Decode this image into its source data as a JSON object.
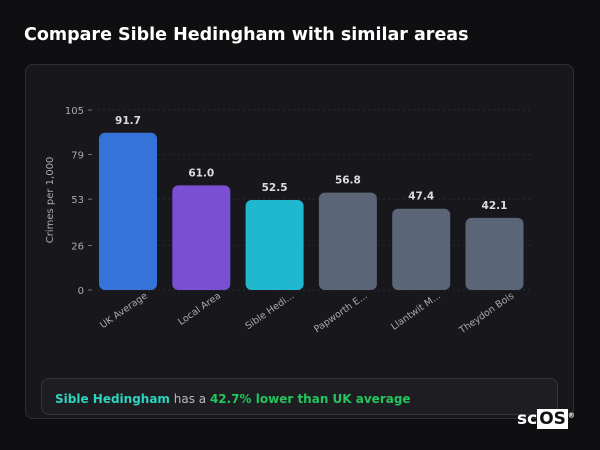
{
  "title": "Compare Sible Hedingham with similar areas",
  "summary": {
    "area": "Sible Hedingham",
    "middle": " has a ",
    "highlight": "42.7% lower than UK average"
  },
  "logo": {
    "prefix": "sc",
    "box": "OS",
    "mark": "®"
  },
  "chart_data": {
    "type": "bar",
    "title": "",
    "xlabel": "",
    "ylabel": "Crimes per 1,000",
    "ylim": [
      0,
      105
    ],
    "yticks": [
      0,
      26,
      53,
      79,
      105
    ],
    "grid": true,
    "categories": [
      "UK Average",
      "Local Area",
      "Sible Hedi...",
      "Papworth E...",
      "Llantwit M...",
      "Theydon Bois"
    ],
    "values": [
      91.7,
      61.0,
      52.5,
      56.8,
      47.4,
      42.1
    ],
    "labels": [
      "91.7",
      "61.0",
      "52.5",
      "56.8",
      "47.4",
      "42.1"
    ],
    "colors": [
      "#3573d9",
      "#7b4fd3",
      "#20b8cf",
      "#5a6578",
      "#5a6578",
      "#5a6578"
    ]
  }
}
